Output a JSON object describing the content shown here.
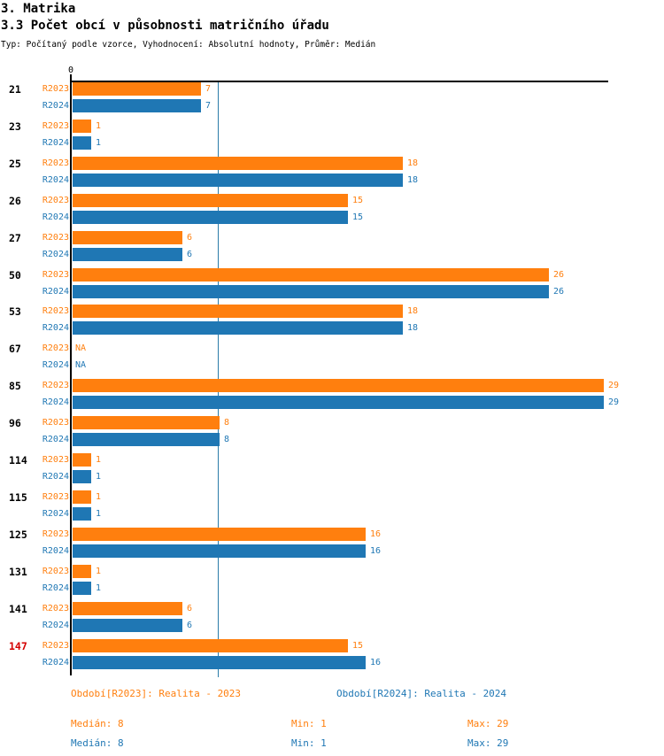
{
  "header": {
    "title": "3. Matrika",
    "subtitle": "3.3 Počet obcí v působnosti matričního úřadu",
    "meta": "Typ: Počítaný podle vzorce, Vyhodnocení: Absolutní hodnoty, Průměr: Medián"
  },
  "chart_data": {
    "type": "bar",
    "orientation": "horizontal",
    "title": "3.3 Počet obcí v působnosti matričního úřadu",
    "categories": [
      "21",
      "23",
      "25",
      "26",
      "27",
      "50",
      "53",
      "67",
      "85",
      "96",
      "114",
      "115",
      "125",
      "131",
      "141",
      "147"
    ],
    "highlighted_category": "147",
    "highlight_color": "#d40000",
    "series": [
      {
        "name": "R2023",
        "color": "#ff7f0e",
        "values": [
          7,
          1,
          18,
          15,
          6,
          26,
          18,
          null,
          29,
          8,
          1,
          1,
          16,
          1,
          6,
          15
        ]
      },
      {
        "name": "R2024",
        "color": "#1f77b4",
        "values": [
          7,
          1,
          18,
          15,
          6,
          26,
          18,
          null,
          29,
          8,
          1,
          1,
          16,
          1,
          6,
          16
        ]
      }
    ],
    "na_label": "NA",
    "axis": {
      "zero_label": "0",
      "xmin": 0,
      "xmax": 29.3,
      "median_line_value": 8,
      "median_line_color": "#2b7ca9",
      "grid": false
    },
    "legend_position": "bottom",
    "legend": [
      {
        "label": "Období[R2023]: Realita - 2023",
        "color": "#ff7f0e"
      },
      {
        "label": "Období[R2024]: Realita - 2024",
        "color": "#1f77b4"
      }
    ],
    "stats": [
      {
        "series": "R2023",
        "median_label": "Medián: 8",
        "min_label": "Min: 1",
        "max_label": "Max: 29"
      },
      {
        "series": "R2024",
        "median_label": "Medián: 8",
        "min_label": "Min: 1",
        "max_label": "Max: 29"
      }
    ]
  },
  "colors": {
    "r2023": "#ff7f0e",
    "r2024": "#1f77b4",
    "axis": "#000000",
    "median_line": "#2b7ca9",
    "highlight": "#d40000",
    "background": "#ffffff"
  }
}
